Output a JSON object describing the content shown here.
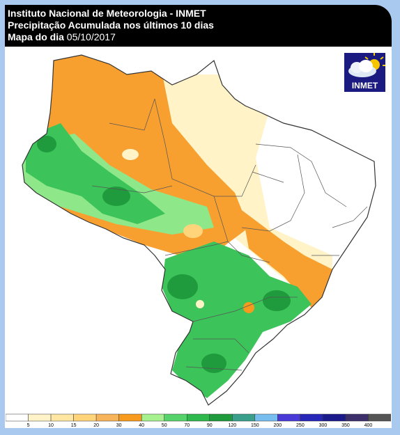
{
  "header": {
    "line1": "Instituto Nacional de Meteorologia - INMET",
    "line2": "Precipitação Acumulada nos últimos 10 dias",
    "line3_prefix": "Mapa do dia",
    "line3_date": "05/10/2017"
  },
  "logo": {
    "text": "INMET",
    "icon": "cloud-sun-icon"
  },
  "legend": {
    "ticks": [
      "5",
      "10",
      "15",
      "20",
      "30",
      "40",
      "50",
      "70",
      "90",
      "120",
      "150",
      "200",
      "250",
      "300",
      "350",
      "400"
    ],
    "colors": [
      "#ffffff",
      "#fff3c7",
      "#ffe7a3",
      "#ffd47a",
      "#f7b45a",
      "#f79a1e",
      "#a6f08e",
      "#56d36a",
      "#2fb84c",
      "#1f9a3c",
      "#3aa08c",
      "#78bdf0",
      "#4a3ad8",
      "#2626b8",
      "#1a1a8a",
      "#3d2f6b",
      "#555555"
    ]
  },
  "colors": {
    "frame": "#a9c9ee",
    "header": "#000000",
    "dry": "#ffffff",
    "light_yellow": "#fff3c7",
    "orange": "#f7a030",
    "green_light": "#8ee88a",
    "green": "#3cc35a",
    "green_dark": "#1f9a3c",
    "border": "#333333"
  }
}
